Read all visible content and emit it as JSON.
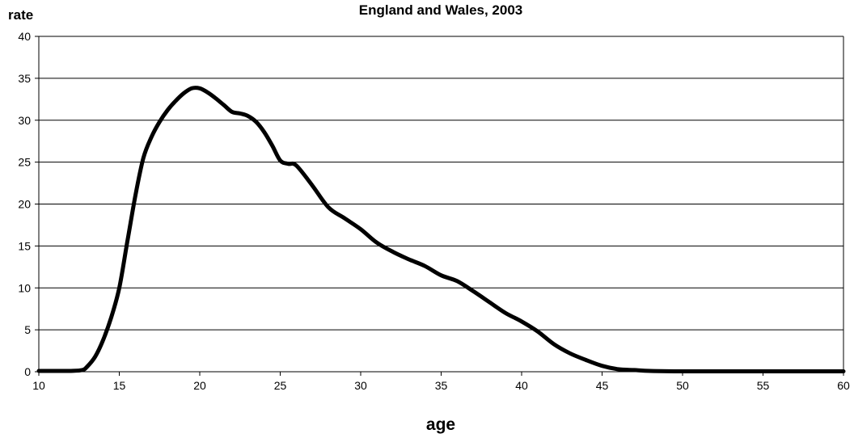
{
  "chart_data": {
    "type": "line",
    "title": "England and Wales, 2003",
    "xlabel": "age",
    "ylabel": "rate",
    "xlim": [
      10,
      60
    ],
    "ylim": [
      0,
      40
    ],
    "x_ticks": [
      10,
      15,
      20,
      25,
      30,
      35,
      40,
      45,
      50,
      55,
      60
    ],
    "y_ticks": [
      0,
      5,
      10,
      15,
      20,
      25,
      30,
      35,
      40
    ],
    "grid": "horizontal",
    "line_color": "#000000",
    "series": [
      {
        "x": [
          10,
          11,
          12,
          12.7,
          13,
          13.5,
          14,
          14.5,
          15,
          15.5,
          16,
          16.5,
          17,
          17.5,
          18,
          18.5,
          19,
          19.5,
          20,
          20.5,
          21,
          21.5,
          22,
          22.5,
          23,
          23.5,
          24,
          24.5,
          25,
          25.5,
          26,
          27,
          28,
          29,
          30,
          31,
          32,
          33,
          34,
          35,
          36,
          37,
          38,
          39,
          40,
          41,
          42,
          43,
          44,
          45,
          46,
          47,
          48,
          50,
          55,
          60
        ],
        "y": [
          0.1,
          0.1,
          0.1,
          0.2,
          0.6,
          1.8,
          3.8,
          6.5,
          10.0,
          15.5,
          21.0,
          25.5,
          28.0,
          29.8,
          31.2,
          32.3,
          33.2,
          33.8,
          33.8,
          33.3,
          32.6,
          31.8,
          31.0,
          30.8,
          30.5,
          29.8,
          28.6,
          27.0,
          25.2,
          24.8,
          24.6,
          22.2,
          19.6,
          18.3,
          17.0,
          15.4,
          14.3,
          13.4,
          12.6,
          11.5,
          10.8,
          9.6,
          8.3,
          7.0,
          6.0,
          4.8,
          3.3,
          2.2,
          1.4,
          0.7,
          0.3,
          0.2,
          0.1,
          0.05,
          0.05,
          0.05
        ]
      }
    ]
  }
}
